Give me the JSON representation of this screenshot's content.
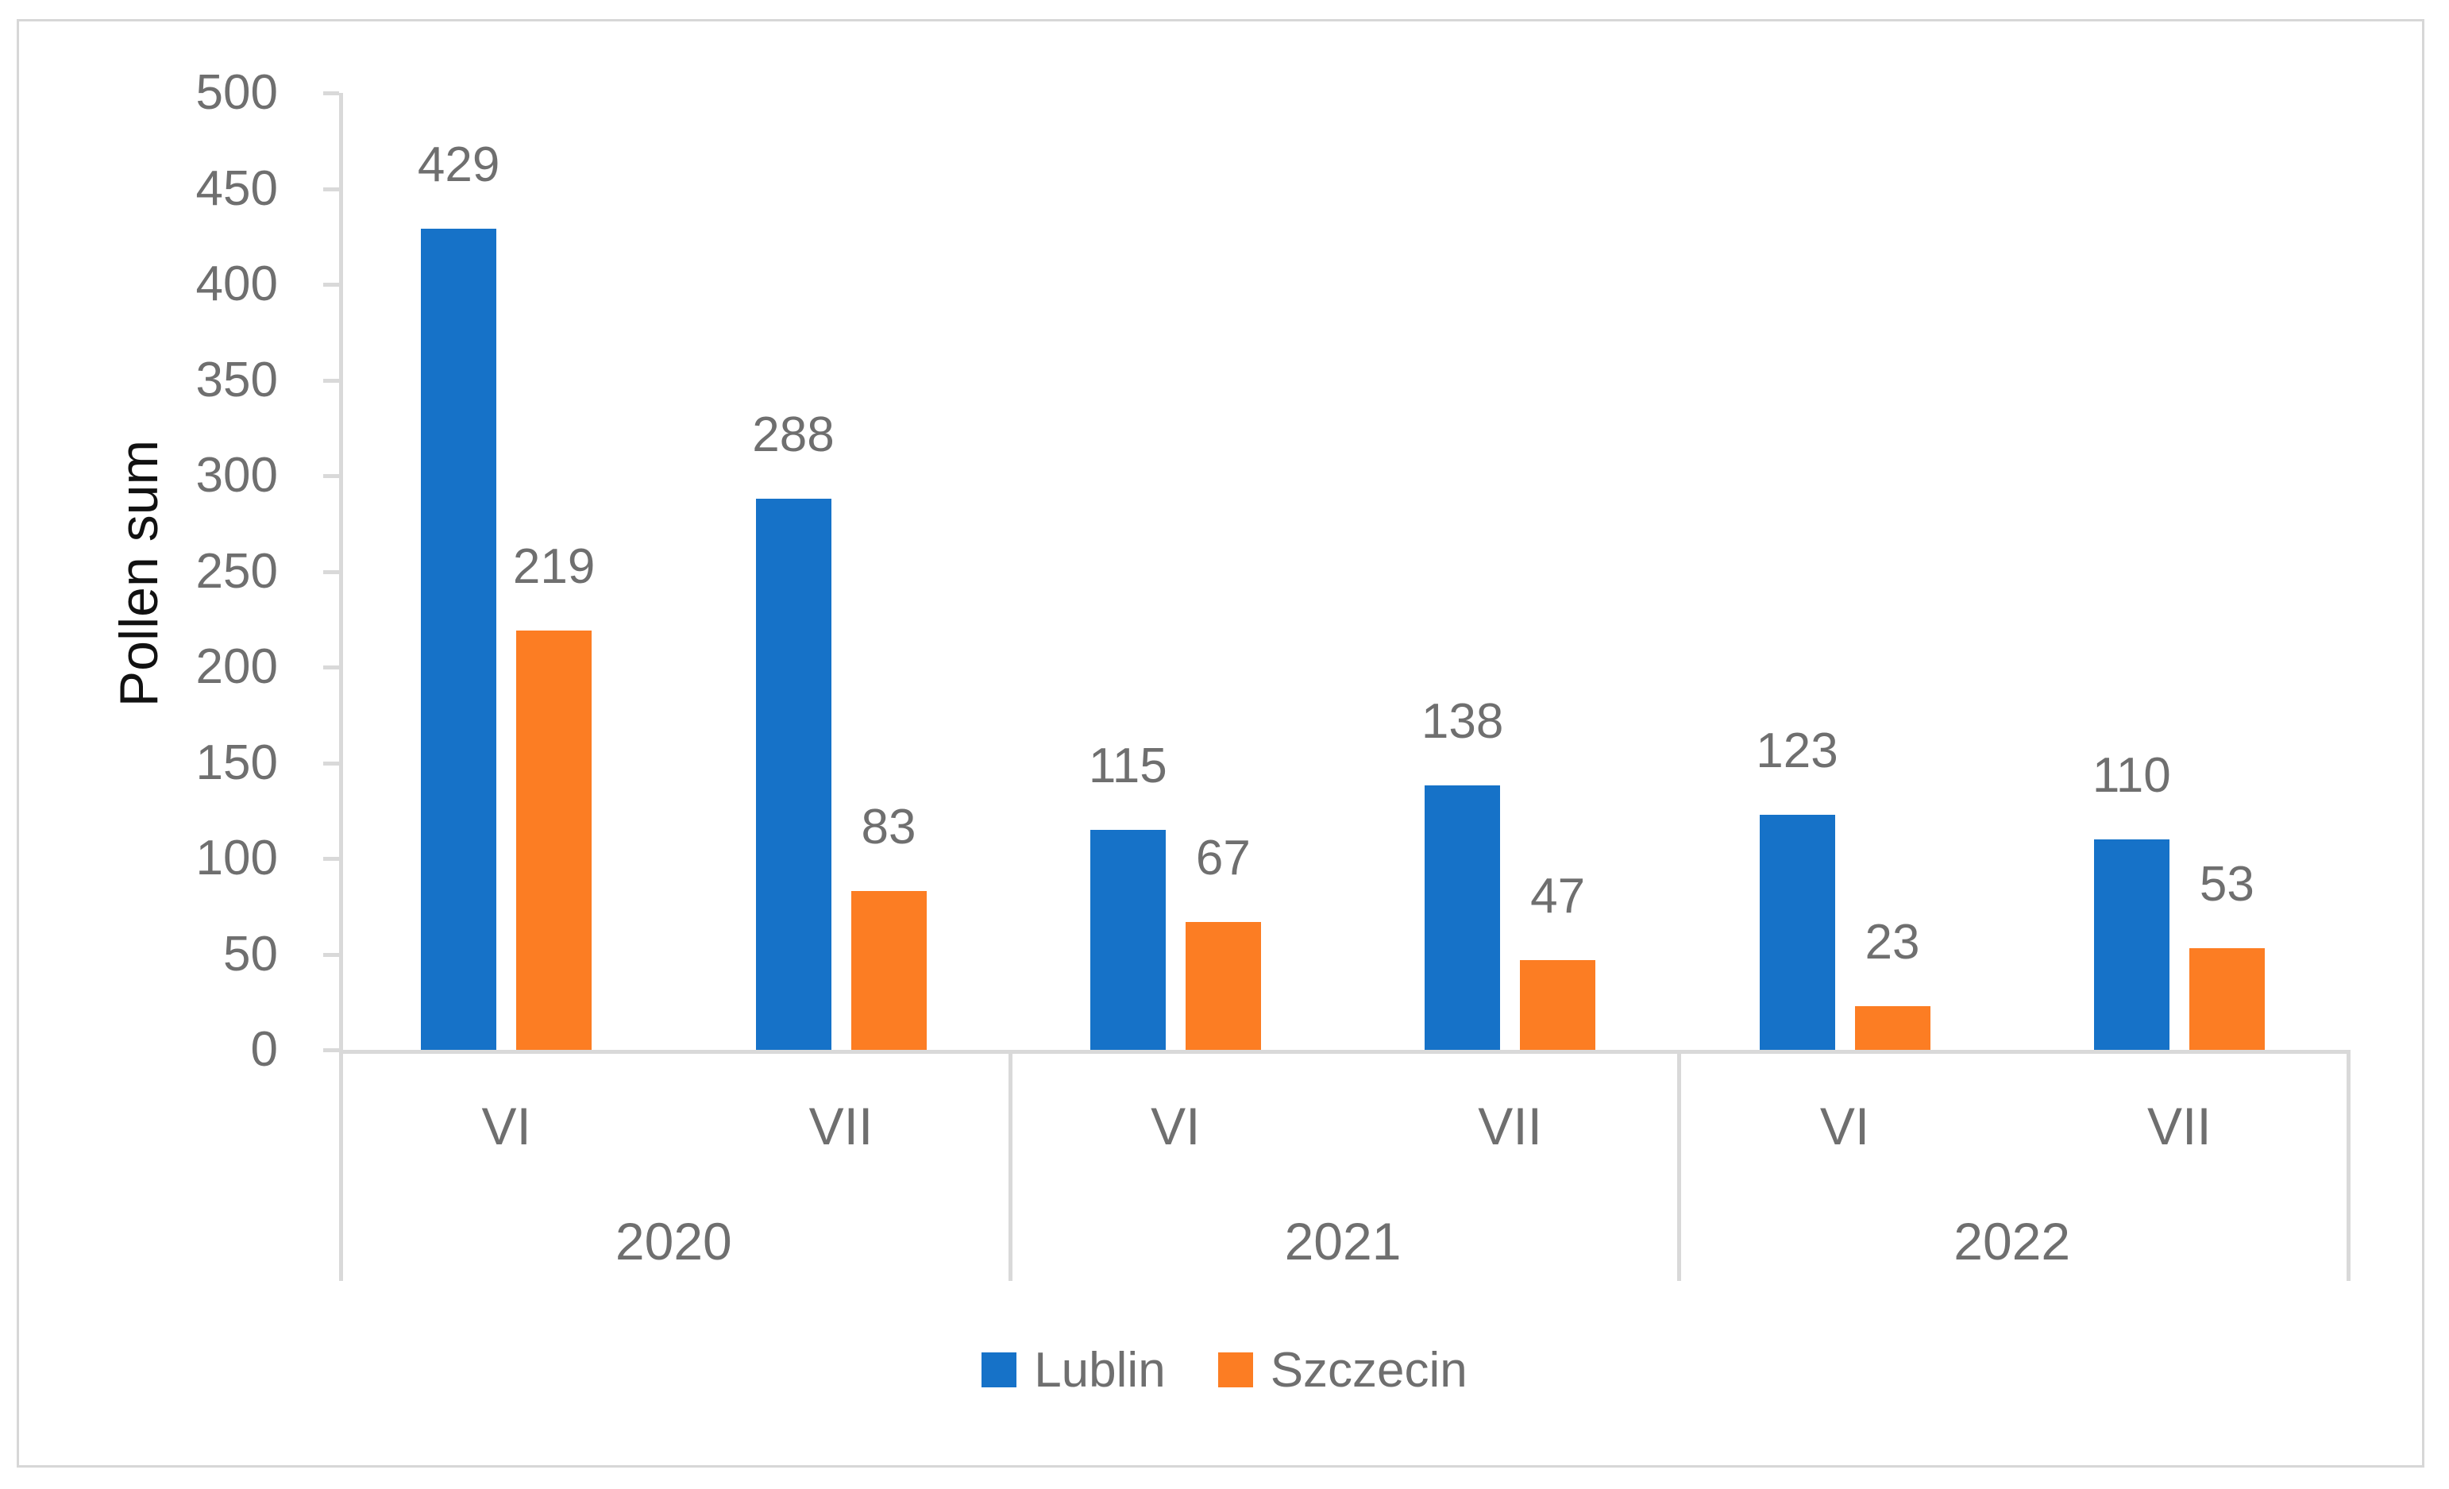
{
  "chart": {
    "y_axis_title": "Pollen sum",
    "legend_items": [
      "Lublin",
      "Szczecin"
    ]
  },
  "colors": {
    "lublin_blue": "#1672C8",
    "szczecin_orange": "#FC7D23",
    "axis_line": "#D9D9D9",
    "label_text": "#6F6F6F",
    "title_text": "#111111",
    "frame_border": "#D7D7D7"
  },
  "chart_data": {
    "type": "bar",
    "title": "",
    "xlabel": "",
    "ylabel": "Pollen sum",
    "ylim": [
      0,
      500
    ],
    "y_tick_step": 50,
    "y_ticks": [
      0,
      50,
      100,
      150,
      200,
      250,
      300,
      350,
      400,
      450,
      500
    ],
    "grid": false,
    "legend_position": "bottom",
    "groups": [
      "2020",
      "2021",
      "2022"
    ],
    "categories_per_group": [
      "VI",
      "VII"
    ],
    "categories": [
      "VI",
      "VII",
      "VI",
      "VII",
      "VI",
      "VII"
    ],
    "series": [
      {
        "name": "Lublin",
        "color": "#1672C8",
        "values": [
          429,
          288,
          115,
          138,
          123,
          110
        ]
      },
      {
        "name": "Szczecin",
        "color": "#FC7D23",
        "values": [
          219,
          83,
          67,
          47,
          23,
          53
        ]
      }
    ],
    "data_labels_shown": true
  }
}
